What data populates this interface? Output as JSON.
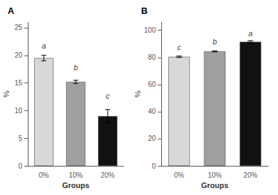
{
  "chart_data": [
    {
      "type": "bar",
      "title": "A",
      "categories": [
        "0%",
        "10%",
        "20%"
      ],
      "values": [
        19.5,
        15.2,
        9.0
      ],
      "errors": [
        0.5,
        0.3,
        1.2
      ],
      "colors": [
        "#d8d8d8",
        "#a0a0a0",
        "#111111"
      ],
      "annotations": [
        {
          "text": "a",
          "x": "0%",
          "y": 21.0
        },
        {
          "text": "b",
          "x": "10%",
          "y": 17.2
        },
        {
          "text": "c",
          "x": "20%",
          "y": 12.0
        }
      ],
      "xlabel": "Groups",
      "ylabel": "%",
      "ylim": [
        0,
        26
      ],
      "yticks": [
        0,
        5,
        10,
        15,
        20,
        25
      ],
      "grid": false
    },
    {
      "type": "bar",
      "title": "B",
      "categories": [
        "0%",
        "10%",
        "20%"
      ],
      "values": [
        80.5,
        84.5,
        91.5
      ],
      "errors": [
        0.5,
        0.4,
        0.8
      ],
      "colors": [
        "#d8d8d8",
        "#a0a0a0",
        "#111111"
      ],
      "annotations": [
        {
          "text": "c",
          "x": "0%",
          "y": 85.0
        },
        {
          "text": "b",
          "x": "10%",
          "y": 89.0
        },
        {
          "text": "a",
          "x": "20%",
          "y": 95.0
        }
      ],
      "xlabel": "Groups",
      "ylabel": "%",
      "ylim": [
        0,
        106
      ],
      "yticks": [
        0,
        20,
        40,
        60,
        80,
        100
      ],
      "grid": false
    }
  ]
}
